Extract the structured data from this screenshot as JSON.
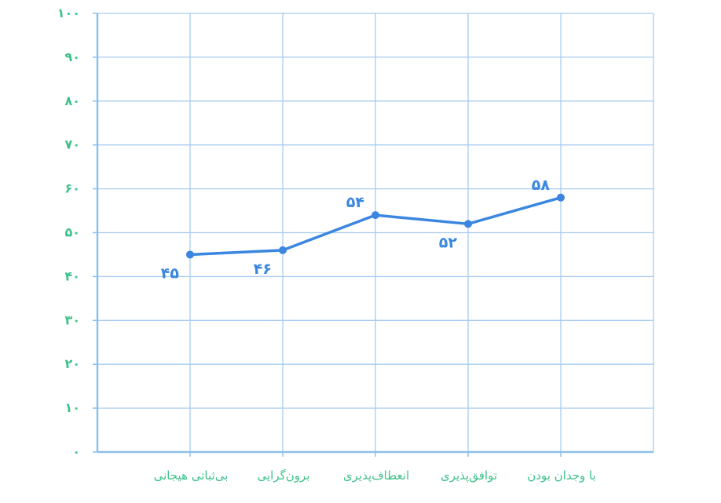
{
  "chart_data": {
    "type": "line",
    "categories": [
      "بی‌ثباتی هیجانی",
      "برون‌گرایی",
      "انعطاف‌پذیری",
      "توافق‌پذیری",
      "با وجدان بودن"
    ],
    "series": [
      {
        "values": [
          45,
          46,
          54,
          52,
          58
        ],
        "labels": [
          "۴۵",
          "۴۶",
          "۵۴",
          "۵۲",
          "۵۸"
        ]
      }
    ],
    "ylim": [
      0,
      100
    ],
    "yticks": [
      0,
      10,
      20,
      30,
      40,
      50,
      60,
      70,
      80,
      90,
      100
    ],
    "ytick_labels": [
      "۰",
      "۱۰",
      "۲۰",
      "۳۰",
      "۴۰",
      "۵۰",
      "۶۰",
      "۷۰",
      "۸۰",
      "۹۰",
      "۱۰۰"
    ],
    "grid": true,
    "colors": {
      "line": "#3a86e0",
      "grid": "#a8cdf0",
      "axis": "#8fc0ea",
      "tick_text": "#3dc28a",
      "data_label": "#3a86e0"
    }
  }
}
